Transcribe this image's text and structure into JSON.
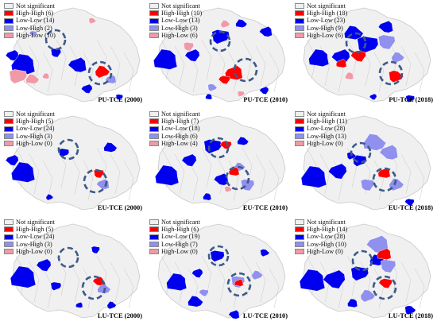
{
  "legend_labels": [
    "Not significant",
    "High-High",
    "Low-Low",
    "Low-High",
    "High-Low"
  ],
  "colors": {
    "not_significant": "#f0f0f0",
    "high_high": "#ff0000",
    "low_low": "#0000ee",
    "low_high": "#9090ee",
    "high_low": "#f09aa8",
    "boundary": "#c9c9c9",
    "circle": "#3d5a8a"
  },
  "panels": [
    {
      "title": "PU-TCE (2000)",
      "counts": {
        "high_high": "(6)",
        "low_low": "(14)",
        "low_high": "(2)",
        "high_low": "(10)"
      }
    },
    {
      "title": "PU-TCE (2010)",
      "counts": {
        "high_high": "(10)",
        "low_low": "(13)",
        "low_high": "(3)",
        "high_low": "(6)"
      }
    },
    {
      "title": "PU-TCE (2018)",
      "counts": {
        "high_high": "(18)",
        "low_low": "(23)",
        "low_high": "(9)",
        "high_low": "(6)"
      }
    },
    {
      "title": "EU-TCE (2000)",
      "counts": {
        "high_high": "(5)",
        "low_low": "(24)",
        "low_high": "(3)",
        "high_low": "(0)"
      }
    },
    {
      "title": "EU-TCE (2010)",
      "counts": {
        "high_high": "(7)",
        "low_low": "(18)",
        "low_high": "(6)",
        "high_low": "(4)"
      }
    },
    {
      "title": "EU-TCE (2018)",
      "counts": {
        "high_high": "(11)",
        "low_low": "(28)",
        "low_high": "(13)",
        "high_low": "(0)"
      }
    },
    {
      "title": "LU-TCE (2000)",
      "counts": {
        "high_high": "(5)",
        "low_low": "(24)",
        "low_high": "(3)",
        "high_low": "(0)"
      }
    },
    {
      "title": "LU-TCE (2010)",
      "counts": {
        "high_high": "(6)",
        "low_low": "(19)",
        "low_high": "(7)",
        "high_low": "(0)"
      }
    },
    {
      "title": "LU-TCE (2018)",
      "counts": {
        "high_high": "(14)",
        "low_low": "(28)",
        "low_high": "(10)",
        "high_low": "(0)"
      }
    }
  ]
}
